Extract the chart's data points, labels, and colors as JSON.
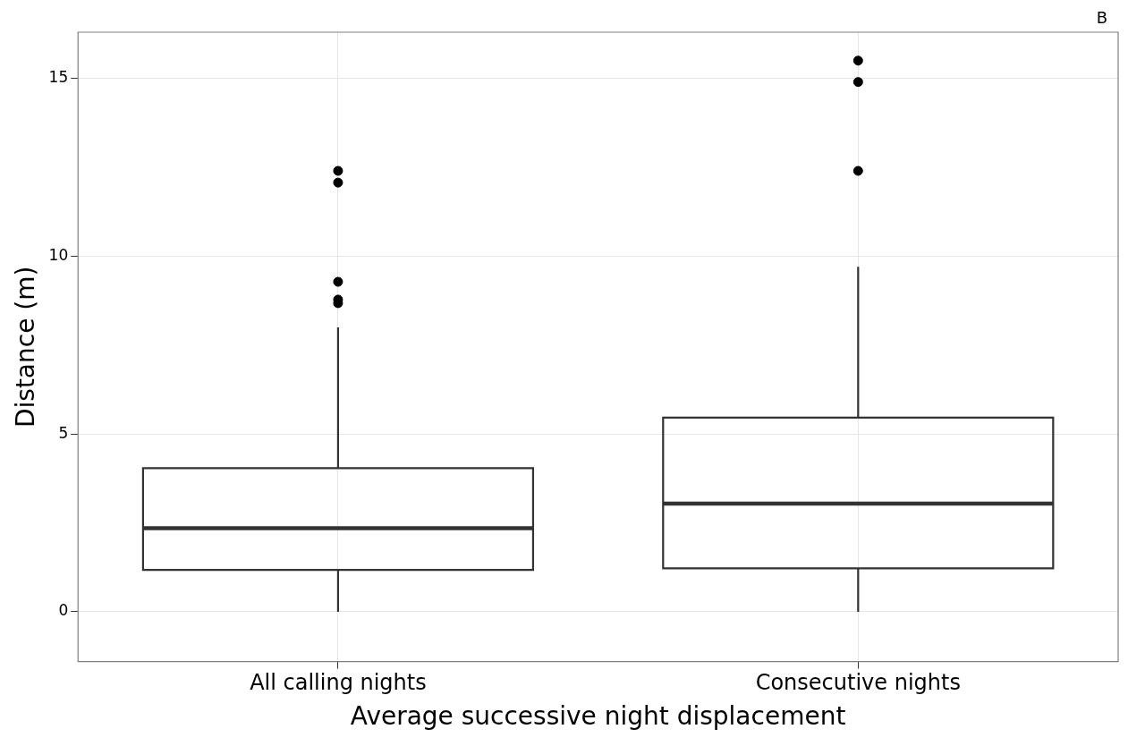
{
  "chart_data": {
    "type": "box",
    "xlabel": "Average successive night displacement",
    "ylabel": "Distance (m)",
    "annotations": [
      "B"
    ],
    "categories": [
      "All calling nights",
      "Consecutive nights"
    ],
    "boxes": [
      {
        "low": 0,
        "q1": 1.18,
        "median": 2.35,
        "q3": 4.04,
        "high": 8.0,
        "outliers": [
          12.4,
          12.07,
          9.28,
          8.78,
          8.68
        ]
      },
      {
        "low": 0,
        "q1": 1.22,
        "median": 3.04,
        "q3": 5.46,
        "high": 9.7,
        "outliers": [
          15.5,
          14.9,
          12.4
        ]
      }
    ],
    "color": "#333333",
    "ylim": [
      -1.4,
      16.3
    ],
    "yticks": [
      0,
      5,
      10,
      15
    ],
    "grid": true,
    "legend": false
  }
}
